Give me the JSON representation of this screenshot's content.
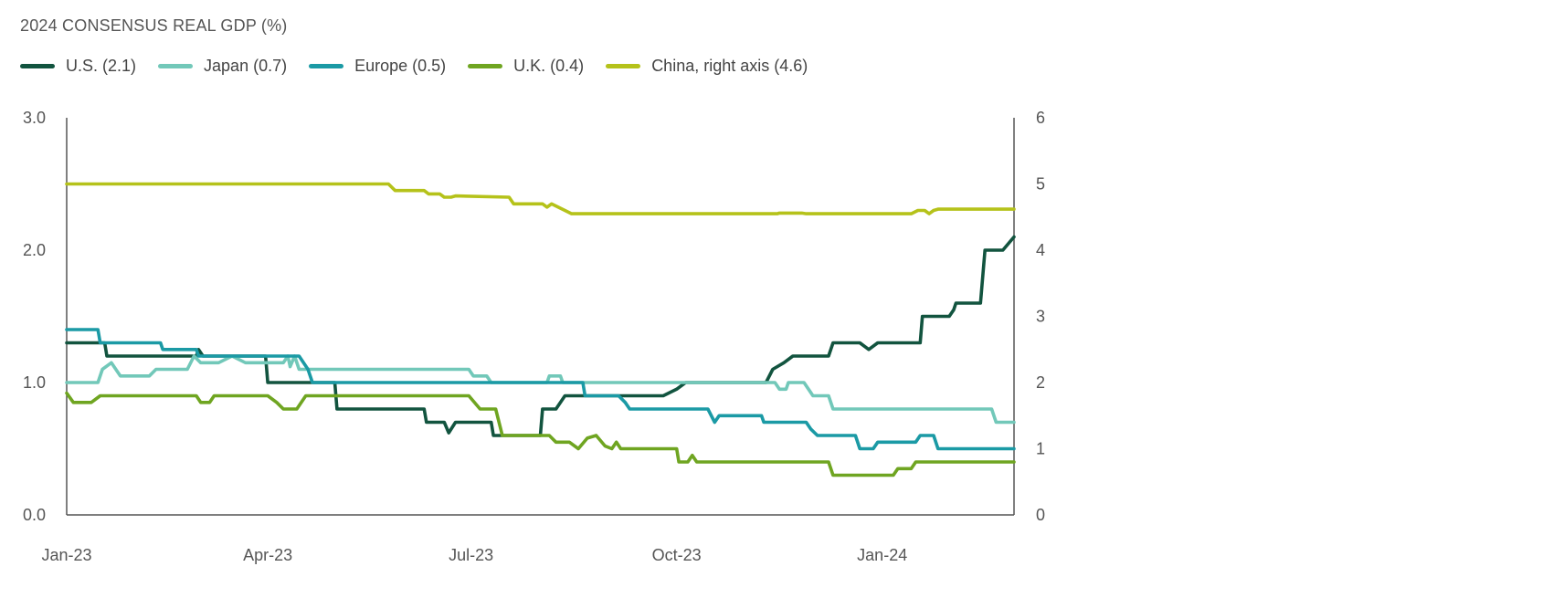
{
  "chart_data": {
    "type": "line",
    "title": "2024 CONSENSUS REAL GDP (%)",
    "x_tick_labels": [
      "Jan-23",
      "Apr-23",
      "Jul-23",
      "Oct-23",
      "Jan-24"
    ],
    "x_tick_dates": [
      "2023-01-01",
      "2023-04-01",
      "2023-07-01",
      "2023-10-01",
      "2024-01-01"
    ],
    "x_range": [
      "2023-01-01",
      "2024-02-29"
    ],
    "left_axis": {
      "range": [
        0,
        3
      ],
      "ticks": [
        "0.0",
        "1.0",
        "2.0",
        "3.0"
      ],
      "tick_values": [
        0,
        1,
        2,
        3
      ]
    },
    "right_axis": {
      "range": [
        0,
        6
      ],
      "ticks": [
        "0",
        "1",
        "2",
        "3",
        "4",
        "5",
        "6"
      ],
      "tick_values": [
        0,
        1,
        2,
        3,
        4,
        5,
        6
      ]
    },
    "grid": false,
    "legend_position": "top-left",
    "series": [
      {
        "name": "U.S. (2.1)",
        "color": "#12543f",
        "axis": "left",
        "points": [
          [
            "2023-01-01",
            1.3
          ],
          [
            "2023-01-18",
            1.3
          ],
          [
            "2023-01-19",
            1.2
          ],
          [
            "2023-02-28",
            1.2
          ],
          [
            "2023-03-01",
            1.25
          ],
          [
            "2023-03-03",
            1.2
          ],
          [
            "2023-03-31",
            1.2
          ],
          [
            "2023-04-01",
            1.0
          ],
          [
            "2023-05-01",
            1.0
          ],
          [
            "2023-05-02",
            0.8
          ],
          [
            "2023-06-10",
            0.8
          ],
          [
            "2023-06-11",
            0.7
          ],
          [
            "2023-06-19",
            0.7
          ],
          [
            "2023-06-21",
            0.62
          ],
          [
            "2023-06-24",
            0.7
          ],
          [
            "2023-07-10",
            0.7
          ],
          [
            "2023-07-11",
            0.6
          ],
          [
            "2023-08-01",
            0.6
          ],
          [
            "2023-08-02",
            0.8
          ],
          [
            "2023-08-08",
            0.8
          ],
          [
            "2023-08-12",
            0.9
          ],
          [
            "2023-09-25",
            0.9
          ],
          [
            "2023-10-01",
            0.95
          ],
          [
            "2023-10-05",
            1.0
          ],
          [
            "2023-11-10",
            1.0
          ],
          [
            "2023-11-13",
            1.1
          ],
          [
            "2023-11-18",
            1.15
          ],
          [
            "2023-11-22",
            1.2
          ],
          [
            "2023-12-08",
            1.2
          ],
          [
            "2023-12-10",
            1.3
          ],
          [
            "2023-12-22",
            1.3
          ],
          [
            "2023-12-26",
            1.25
          ],
          [
            "2023-12-30",
            1.3
          ],
          [
            "2024-01-18",
            1.3
          ],
          [
            "2024-01-19",
            1.5
          ],
          [
            "2024-01-31",
            1.5
          ],
          [
            "2024-02-02",
            1.55
          ],
          [
            "2024-02-03",
            1.6
          ],
          [
            "2024-02-14",
            1.6
          ],
          [
            "2024-02-16",
            2.0
          ],
          [
            "2024-02-24",
            2.0
          ],
          [
            "2024-02-29",
            2.1
          ]
        ]
      },
      {
        "name": "Japan (0.7)",
        "color": "#72c8b9",
        "axis": "left",
        "points": [
          [
            "2023-01-01",
            1.0
          ],
          [
            "2023-01-15",
            1.0
          ],
          [
            "2023-01-17",
            1.1
          ],
          [
            "2023-01-21",
            1.15
          ],
          [
            "2023-01-25",
            1.05
          ],
          [
            "2023-02-07",
            1.05
          ],
          [
            "2023-02-10",
            1.1
          ],
          [
            "2023-02-24",
            1.1
          ],
          [
            "2023-02-27",
            1.2
          ],
          [
            "2023-03-02",
            1.15
          ],
          [
            "2023-03-10",
            1.15
          ],
          [
            "2023-03-16",
            1.2
          ],
          [
            "2023-03-22",
            1.15
          ],
          [
            "2023-04-01",
            1.15
          ],
          [
            "2023-04-08",
            1.15
          ],
          [
            "2023-04-10",
            1.2
          ],
          [
            "2023-04-11",
            1.12
          ],
          [
            "2023-04-13",
            1.2
          ],
          [
            "2023-04-15",
            1.1
          ],
          [
            "2023-06-30",
            1.1
          ],
          [
            "2023-07-02",
            1.05
          ],
          [
            "2023-07-08",
            1.05
          ],
          [
            "2023-07-10",
            1.0
          ],
          [
            "2023-08-04",
            1.0
          ],
          [
            "2023-08-05",
            1.05
          ],
          [
            "2023-08-10",
            1.05
          ],
          [
            "2023-08-11",
            1.0
          ],
          [
            "2023-11-14",
            1.0
          ],
          [
            "2023-11-16",
            0.95
          ],
          [
            "2023-11-19",
            0.95
          ],
          [
            "2023-11-20",
            1.0
          ],
          [
            "2023-11-27",
            1.0
          ],
          [
            "2023-12-01",
            0.9
          ],
          [
            "2023-12-08",
            0.9
          ],
          [
            "2023-12-10",
            0.8
          ],
          [
            "2024-02-19",
            0.8
          ],
          [
            "2024-02-21",
            0.7
          ],
          [
            "2024-02-29",
            0.7
          ]
        ]
      },
      {
        "name": "Europe (0.5)",
        "color": "#1b9aa5",
        "axis": "left",
        "points": [
          [
            "2023-01-01",
            1.4
          ],
          [
            "2023-01-15",
            1.4
          ],
          [
            "2023-01-16",
            1.3
          ],
          [
            "2023-02-12",
            1.3
          ],
          [
            "2023-02-13",
            1.25
          ],
          [
            "2023-02-28",
            1.25
          ],
          [
            "2023-03-01",
            1.2
          ],
          [
            "2023-04-15",
            1.2
          ],
          [
            "2023-04-19",
            1.1
          ],
          [
            "2023-04-21",
            1.0
          ],
          [
            "2023-08-20",
            1.0
          ],
          [
            "2023-08-21",
            0.9
          ],
          [
            "2023-09-05",
            0.9
          ],
          [
            "2023-09-08",
            0.85
          ],
          [
            "2023-09-10",
            0.8
          ],
          [
            "2023-10-15",
            0.8
          ],
          [
            "2023-10-18",
            0.7
          ],
          [
            "2023-10-20",
            0.75
          ],
          [
            "2023-11-08",
            0.75
          ],
          [
            "2023-11-09",
            0.7
          ],
          [
            "2023-11-28",
            0.7
          ],
          [
            "2023-11-30",
            0.65
          ],
          [
            "2023-12-03",
            0.6
          ],
          [
            "2023-12-20",
            0.6
          ],
          [
            "2023-12-22",
            0.5
          ],
          [
            "2023-12-28",
            0.5
          ],
          [
            "2023-12-30",
            0.55
          ],
          [
            "2024-01-16",
            0.55
          ],
          [
            "2024-01-18",
            0.6
          ],
          [
            "2024-01-24",
            0.6
          ],
          [
            "2024-01-26",
            0.5
          ],
          [
            "2024-02-29",
            0.5
          ]
        ]
      },
      {
        "name": "U.K. (0.4)",
        "color": "#6fa521",
        "axis": "left",
        "points": [
          [
            "2023-01-01",
            0.92
          ],
          [
            "2023-01-04",
            0.85
          ],
          [
            "2023-01-12",
            0.85
          ],
          [
            "2023-01-16",
            0.9
          ],
          [
            "2023-02-28",
            0.9
          ],
          [
            "2023-03-02",
            0.85
          ],
          [
            "2023-03-06",
            0.85
          ],
          [
            "2023-03-08",
            0.9
          ],
          [
            "2023-04-01",
            0.9
          ],
          [
            "2023-04-05",
            0.85
          ],
          [
            "2023-04-08",
            0.8
          ],
          [
            "2023-04-14",
            0.8
          ],
          [
            "2023-04-18",
            0.9
          ],
          [
            "2023-06-30",
            0.9
          ],
          [
            "2023-07-05",
            0.8
          ],
          [
            "2023-07-12",
            0.8
          ],
          [
            "2023-07-15",
            0.6
          ],
          [
            "2023-08-05",
            0.6
          ],
          [
            "2023-08-08",
            0.55
          ],
          [
            "2023-08-14",
            0.55
          ],
          [
            "2023-08-18",
            0.5
          ],
          [
            "2023-08-22",
            0.58
          ],
          [
            "2023-08-26",
            0.6
          ],
          [
            "2023-08-30",
            0.52
          ],
          [
            "2023-09-02",
            0.5
          ],
          [
            "2023-09-04",
            0.55
          ],
          [
            "2023-09-06",
            0.5
          ],
          [
            "2023-10-01",
            0.5
          ],
          [
            "2023-10-02",
            0.4
          ],
          [
            "2023-10-06",
            0.4
          ],
          [
            "2023-10-08",
            0.45
          ],
          [
            "2023-10-10",
            0.4
          ],
          [
            "2023-12-08",
            0.4
          ],
          [
            "2023-12-10",
            0.3
          ],
          [
            "2024-01-06",
            0.3
          ],
          [
            "2024-01-08",
            0.35
          ],
          [
            "2024-01-14",
            0.35
          ],
          [
            "2024-01-16",
            0.4
          ],
          [
            "2024-02-29",
            0.4
          ]
        ]
      },
      {
        "name": "China, right axis (4.6)",
        "color": "#b5c21a",
        "axis": "right",
        "points": [
          [
            "2023-01-01",
            5.0
          ],
          [
            "2023-05-25",
            5.0
          ],
          [
            "2023-05-28",
            4.9
          ],
          [
            "2023-06-10",
            4.9
          ],
          [
            "2023-06-12",
            4.85
          ],
          [
            "2023-06-17",
            4.85
          ],
          [
            "2023-06-19",
            4.8
          ],
          [
            "2023-06-22",
            4.8
          ],
          [
            "2023-06-24",
            4.82
          ],
          [
            "2023-07-18",
            4.8
          ],
          [
            "2023-07-20",
            4.7
          ],
          [
            "2023-08-02",
            4.7
          ],
          [
            "2023-08-04",
            4.65
          ],
          [
            "2023-08-06",
            4.7
          ],
          [
            "2023-08-12",
            4.6
          ],
          [
            "2023-08-15",
            4.55
          ],
          [
            "2023-11-15",
            4.55
          ],
          [
            "2023-11-16",
            4.56
          ],
          [
            "2023-11-26",
            4.56
          ],
          [
            "2023-11-28",
            4.55
          ],
          [
            "2024-01-14",
            4.55
          ],
          [
            "2024-01-17",
            4.6
          ],
          [
            "2024-01-20",
            4.6
          ],
          [
            "2024-01-22",
            4.55
          ],
          [
            "2024-01-24",
            4.6
          ],
          [
            "2024-01-26",
            4.62
          ],
          [
            "2024-02-29",
            4.62
          ]
        ]
      }
    ]
  }
}
